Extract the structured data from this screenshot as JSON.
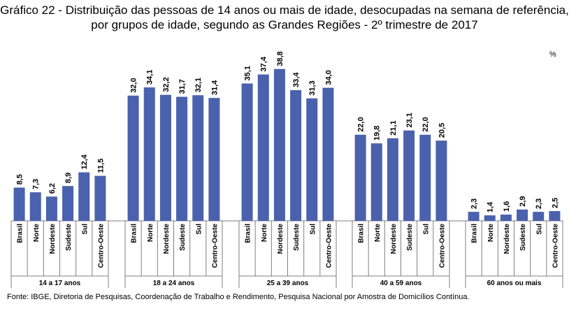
{
  "title_line1": "Gráfico 22 - Distribuição das pessoas de 14 anos ou mais de idade, desocupadas na semana de referência,",
  "title_line2": "por grupos de idade, segundo as Grandes Regiões - 2º trimestre de 2017",
  "unit_label": "%",
  "source": "Fonte: IBGE, Diretoria de Pesquisas, Coordenação de Trabalho e Rendimento, Pesquisa Nacional por Amostra de Domicílios Contínua.",
  "colors": {
    "bar": "#4a62ad",
    "axis": "#7f7f7f"
  },
  "chart_data": {
    "type": "bar",
    "title": "Gráfico 22 - Distribuição das pessoas de 14 anos ou mais de idade, desocupadas na semana de referência, por grupos de idade, segundo as Grandes Regiões - 2º trimestre de 2017",
    "ylabel": "%",
    "ylim": [
      0,
      42
    ],
    "regions": [
      "Brasil",
      "Norte",
      "Nordeste",
      "Sudeste",
      "Sul",
      "Centro-Oeste"
    ],
    "groups": [
      {
        "name": "14 a 17 anos",
        "values": [
          8.5,
          7.3,
          6.2,
          8.9,
          12.4,
          11.5
        ],
        "labels": [
          "8,5",
          "7,3",
          "6,2",
          "8,9",
          "12,4",
          "11,5"
        ]
      },
      {
        "name": "18 a 24 anos",
        "values": [
          32.0,
          34.1,
          32.2,
          31.7,
          32.1,
          31.4
        ],
        "labels": [
          "32,0",
          "34,1",
          "32,2",
          "31,7",
          "32,1",
          "31,4"
        ]
      },
      {
        "name": "25 a 39 anos",
        "values": [
          35.1,
          37.4,
          38.8,
          33.4,
          31.3,
          34.0
        ],
        "labels": [
          "35,1",
          "37,4",
          "38,8",
          "33,4",
          "31,3",
          "34,0"
        ]
      },
      {
        "name": "40 a 59 anos",
        "values": [
          22.0,
          19.8,
          21.1,
          23.1,
          22.0,
          20.5
        ],
        "labels": [
          "22,0",
          "19,8",
          "21,1",
          "23,1",
          "22,0",
          "20,5"
        ]
      },
      {
        "name": "60 anos ou mais",
        "values": [
          2.3,
          1.4,
          1.6,
          2.9,
          2.3,
          2.5
        ],
        "labels": [
          "2,3",
          "1,4",
          "1,6",
          "2,9",
          "2,3",
          "2,5"
        ]
      }
    ]
  }
}
